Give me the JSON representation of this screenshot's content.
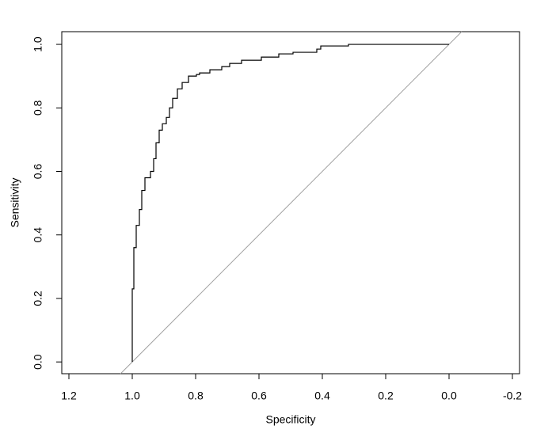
{
  "chart_data": {
    "type": "line",
    "x_label": "Specificity",
    "y_label": "Sensitivity",
    "x": [
      1,
      1,
      0.995,
      0.995,
      0.9875,
      0.9875,
      0.9775,
      0.9775,
      0.97,
      0.97,
      0.96,
      0.96,
      0.9425,
      0.9425,
      0.9325,
      0.9325,
      0.925,
      0.925,
      0.915,
      0.915,
      0.905,
      0.905,
      0.8925,
      0.8925,
      0.8825,
      0.8825,
      0.8725,
      0.8725,
      0.8575,
      0.8575,
      0.8425,
      0.8425,
      0.8225,
      0.8225,
      0.7975,
      0.7975,
      0.7875,
      0.7875,
      0.755,
      0.755,
      0.7175,
      0.7175,
      0.6925,
      0.6925,
      0.655,
      0.655,
      0.5925,
      0.5925,
      0.5375,
      0.5375,
      0.4925,
      0.4925,
      0.4175,
      0.4175,
      0.405,
      0.405,
      0.3175,
      0.3175,
      0
    ],
    "values": [
      0,
      0.23,
      0.23,
      0.36,
      0.36,
      0.43,
      0.43,
      0.48,
      0.48,
      0.54,
      0.54,
      0.58,
      0.58,
      0.6,
      0.6,
      0.64,
      0.64,
      0.69,
      0.69,
      0.73,
      0.73,
      0.75,
      0.75,
      0.77,
      0.77,
      0.8,
      0.8,
      0.83,
      0.83,
      0.86,
      0.86,
      0.88,
      0.88,
      0.9,
      0.9,
      0.905,
      0.905,
      0.91,
      0.91,
      0.92,
      0.92,
      0.93,
      0.93,
      0.94,
      0.94,
      0.95,
      0.95,
      0.96,
      0.96,
      0.97,
      0.97,
      0.975,
      0.975,
      0.985,
      0.985,
      0.995,
      0.995,
      1,
      1
    ],
    "color": "#000000",
    "diagonal_color": "#a0a0a0",
    "diagonal": true,
    "xlim": [
      1.2225,
      -0.2225
    ],
    "ylim": [
      -0.037,
      1.04
    ],
    "xticks": [
      1.2,
      {
        "value": 1.0,
        "label": "1.0"
      },
      0.8,
      0.6,
      0.4,
      0.2,
      {
        "value": 0.0,
        "label": "0.0"
      },
      -0.2
    ],
    "yticks": [
      {
        "value": 0.0,
        "label": "0.0"
      },
      0.2,
      0.4,
      0.6,
      0.8,
      {
        "value": 1.0,
        "label": "1.0"
      }
    ],
    "grid": false
  }
}
